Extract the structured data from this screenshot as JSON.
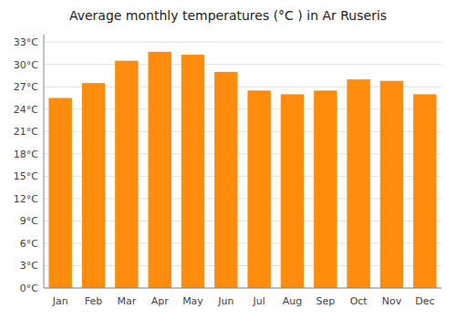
{
  "chart_data": {
    "type": "bar",
    "title": "Average monthly temperatures (°C ) in Ar Ruseris",
    "categories": [
      "Jan",
      "Feb",
      "Mar",
      "Apr",
      "May",
      "Jun",
      "Jul",
      "Aug",
      "Sep",
      "Oct",
      "Nov",
      "Dec"
    ],
    "values": [
      25.5,
      27.5,
      30.5,
      31.7,
      31.3,
      29.0,
      26.5,
      26.0,
      26.5,
      28.0,
      27.8,
      26.0
    ],
    "color": "#FF8C0D",
    "ylim": [
      0,
      34
    ],
    "yticks": [
      {
        "value": 0,
        "label": "0°C"
      },
      {
        "value": 3,
        "label": "3°C"
      },
      {
        "value": 6,
        "label": "6°C"
      },
      {
        "value": 9,
        "label": "9°C"
      },
      {
        "value": 12,
        "label": "12°C"
      },
      {
        "value": 15,
        "label": "15°C"
      },
      {
        "value": 18,
        "label": "18°C"
      },
      {
        "value": 21,
        "label": "21°C"
      },
      {
        "value": 24,
        "label": "24°C"
      },
      {
        "value": 27,
        "label": "27°C"
      },
      {
        "value": 30,
        "label": "30°C"
      },
      {
        "value": 33,
        "label": "33°C"
      }
    ],
    "grid": true
  }
}
